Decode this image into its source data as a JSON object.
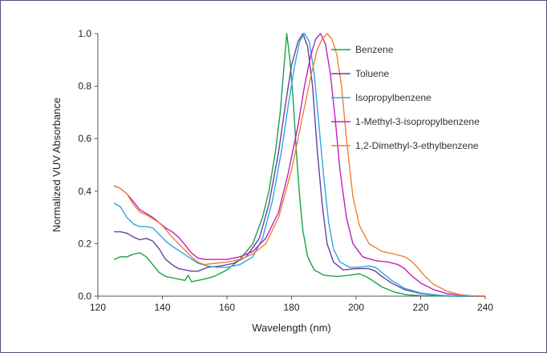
{
  "chart_data": {
    "type": "line",
    "title": "",
    "xlabel": "Wavelength (nm)",
    "ylabel": "Normalized VUV Absorbance",
    "xlim": [
      120,
      240
    ],
    "ylim": [
      0,
      1.0
    ],
    "x_ticks": [
      "120",
      "140",
      "160",
      "180",
      "200",
      "220",
      "240"
    ],
    "y_ticks": [
      "0.0",
      "0.2",
      "0.4",
      "0.6",
      "0.8",
      "1.0"
    ],
    "grid": false,
    "legend_position": "right",
    "series": [
      {
        "name": "Benzene",
        "color": "#1aa14b",
        "points": [
          [
            125,
            0.14
          ],
          [
            127,
            0.15
          ],
          [
            129,
            0.15
          ],
          [
            131,
            0.16
          ],
          [
            133,
            0.165
          ],
          [
            135,
            0.15
          ],
          [
            137,
            0.12
          ],
          [
            139,
            0.09
          ],
          [
            141,
            0.075
          ],
          [
            143,
            0.07
          ],
          [
            145,
            0.065
          ],
          [
            147,
            0.06
          ],
          [
            148,
            0.08
          ],
          [
            149,
            0.055
          ],
          [
            151,
            0.06
          ],
          [
            153,
            0.065
          ],
          [
            156,
            0.075
          ],
          [
            160,
            0.1
          ],
          [
            164,
            0.14
          ],
          [
            168,
            0.2
          ],
          [
            171,
            0.3
          ],
          [
            173,
            0.4
          ],
          [
            175,
            0.55
          ],
          [
            176.5,
            0.7
          ],
          [
            177.5,
            0.85
          ],
          [
            178.5,
            1.0
          ],
          [
            179.5,
            0.9
          ],
          [
            180.5,
            0.75
          ],
          [
            181.5,
            0.55
          ],
          [
            182.5,
            0.38
          ],
          [
            183.5,
            0.25
          ],
          [
            185,
            0.15
          ],
          [
            187,
            0.1
          ],
          [
            190,
            0.08
          ],
          [
            194,
            0.075
          ],
          [
            198,
            0.08
          ],
          [
            201,
            0.085
          ],
          [
            203,
            0.075
          ],
          [
            205,
            0.06
          ],
          [
            208,
            0.035
          ],
          [
            212,
            0.015
          ],
          [
            216,
            0.005
          ],
          [
            220,
            0.002
          ],
          [
            230,
            0.0
          ],
          [
            240,
            0.0
          ]
        ]
      },
      {
        "name": "Toluene",
        "color": "#6b3fa0",
        "points": [
          [
            125,
            0.245
          ],
          [
            127,
            0.245
          ],
          [
            129,
            0.24
          ],
          [
            131,
            0.225
          ],
          [
            133,
            0.215
          ],
          [
            135,
            0.22
          ],
          [
            137,
            0.21
          ],
          [
            139,
            0.18
          ],
          [
            141,
            0.14
          ],
          [
            143,
            0.12
          ],
          [
            145,
            0.105
          ],
          [
            147,
            0.1
          ],
          [
            149,
            0.095
          ],
          [
            151,
            0.095
          ],
          [
            154,
            0.11
          ],
          [
            158,
            0.115
          ],
          [
            162,
            0.125
          ],
          [
            166,
            0.15
          ],
          [
            170,
            0.22
          ],
          [
            173,
            0.35
          ],
          [
            176,
            0.55
          ],
          [
            178,
            0.72
          ],
          [
            180,
            0.88
          ],
          [
            182,
            0.97
          ],
          [
            183.5,
            1.0
          ],
          [
            185,
            0.95
          ],
          [
            186.5,
            0.8
          ],
          [
            188,
            0.55
          ],
          [
            189.5,
            0.35
          ],
          [
            191,
            0.2
          ],
          [
            193,
            0.13
          ],
          [
            196,
            0.1
          ],
          [
            200,
            0.105
          ],
          [
            204,
            0.105
          ],
          [
            206,
            0.095
          ],
          [
            208,
            0.075
          ],
          [
            211,
            0.05
          ],
          [
            215,
            0.025
          ],
          [
            220,
            0.01
          ],
          [
            226,
            0.003
          ],
          [
            232,
            0.0
          ],
          [
            240,
            0.0
          ]
        ]
      },
      {
        "name": "Isopropylbenzene",
        "color": "#2aa9e0",
        "points": [
          [
            125,
            0.355
          ],
          [
            127,
            0.34
          ],
          [
            129,
            0.3
          ],
          [
            131,
            0.275
          ],
          [
            133,
            0.265
          ],
          [
            135,
            0.265
          ],
          [
            137,
            0.26
          ],
          [
            139,
            0.235
          ],
          [
            141,
            0.21
          ],
          [
            143,
            0.19
          ],
          [
            145,
            0.175
          ],
          [
            148,
            0.15
          ],
          [
            151,
            0.125
          ],
          [
            154,
            0.115
          ],
          [
            157,
            0.11
          ],
          [
            160,
            0.11
          ],
          [
            164,
            0.12
          ],
          [
            168,
            0.15
          ],
          [
            171,
            0.22
          ],
          [
            174,
            0.36
          ],
          [
            177,
            0.56
          ],
          [
            179,
            0.73
          ],
          [
            181,
            0.88
          ],
          [
            182.5,
            0.97
          ],
          [
            184,
            1.0
          ],
          [
            185.5,
            0.97
          ],
          [
            187,
            0.85
          ],
          [
            188.5,
            0.65
          ],
          [
            190,
            0.45
          ],
          [
            191.5,
            0.28
          ],
          [
            193,
            0.18
          ],
          [
            195,
            0.13
          ],
          [
            198,
            0.11
          ],
          [
            201,
            0.11
          ],
          [
            204,
            0.115
          ],
          [
            206,
            0.11
          ],
          [
            208,
            0.09
          ],
          [
            211,
            0.06
          ],
          [
            215,
            0.03
          ],
          [
            220,
            0.012
          ],
          [
            226,
            0.003
          ],
          [
            232,
            0.0
          ],
          [
            240,
            0.0
          ]
        ]
      },
      {
        "name": "1-Methyl-3-isopropylbenzene",
        "color": "#c020c0",
        "points": [
          [
            125,
            0.42
          ],
          [
            127,
            0.41
          ],
          [
            129,
            0.39
          ],
          [
            131,
            0.36
          ],
          [
            133,
            0.33
          ],
          [
            135,
            0.315
          ],
          [
            137,
            0.3
          ],
          [
            139,
            0.28
          ],
          [
            141,
            0.26
          ],
          [
            143,
            0.245
          ],
          [
            145,
            0.225
          ],
          [
            147,
            0.195
          ],
          [
            149,
            0.165
          ],
          [
            151,
            0.145
          ],
          [
            153,
            0.14
          ],
          [
            156,
            0.14
          ],
          [
            160,
            0.14
          ],
          [
            164,
            0.15
          ],
          [
            168,
            0.17
          ],
          [
            172,
            0.22
          ],
          [
            176,
            0.32
          ],
          [
            179,
            0.47
          ],
          [
            182,
            0.65
          ],
          [
            184,
            0.8
          ],
          [
            186,
            0.92
          ],
          [
            187.5,
            0.98
          ],
          [
            189,
            1.0
          ],
          [
            190.5,
            0.96
          ],
          [
            192,
            0.85
          ],
          [
            193.5,
            0.68
          ],
          [
            195,
            0.48
          ],
          [
            197,
            0.3
          ],
          [
            199,
            0.2
          ],
          [
            202,
            0.15
          ],
          [
            206,
            0.135
          ],
          [
            210,
            0.13
          ],
          [
            213,
            0.12
          ],
          [
            215,
            0.105
          ],
          [
            217,
            0.08
          ],
          [
            220,
            0.05
          ],
          [
            224,
            0.025
          ],
          [
            228,
            0.01
          ],
          [
            234,
            0.002
          ],
          [
            240,
            0.0
          ]
        ]
      },
      {
        "name": "1,2-Dimethyl-3-ethylbenzene",
        "color": "#f08030",
        "points": [
          [
            125,
            0.42
          ],
          [
            127,
            0.41
          ],
          [
            129,
            0.39
          ],
          [
            131,
            0.35
          ],
          [
            133,
            0.32
          ],
          [
            135,
            0.31
          ],
          [
            137,
            0.295
          ],
          [
            139,
            0.28
          ],
          [
            141,
            0.255
          ],
          [
            143,
            0.225
          ],
          [
            145,
            0.2
          ],
          [
            147,
            0.175
          ],
          [
            149,
            0.15
          ],
          [
            151,
            0.13
          ],
          [
            153,
            0.12
          ],
          [
            156,
            0.125
          ],
          [
            160,
            0.13
          ],
          [
            164,
            0.14
          ],
          [
            168,
            0.16
          ],
          [
            172,
            0.2
          ],
          [
            176,
            0.3
          ],
          [
            180,
            0.48
          ],
          [
            183,
            0.66
          ],
          [
            186,
            0.84
          ],
          [
            188,
            0.94
          ],
          [
            189.5,
            0.98
          ],
          [
            191,
            1.0
          ],
          [
            192.5,
            0.98
          ],
          [
            194,
            0.92
          ],
          [
            195.5,
            0.8
          ],
          [
            197,
            0.6
          ],
          [
            199,
            0.38
          ],
          [
            201,
            0.27
          ],
          [
            204,
            0.2
          ],
          [
            208,
            0.17
          ],
          [
            212,
            0.16
          ],
          [
            215,
            0.15
          ],
          [
            217,
            0.135
          ],
          [
            219,
            0.11
          ],
          [
            221,
            0.08
          ],
          [
            224,
            0.045
          ],
          [
            228,
            0.02
          ],
          [
            232,
            0.006
          ],
          [
            236,
            0.001
          ],
          [
            240,
            0.0
          ]
        ]
      }
    ]
  }
}
